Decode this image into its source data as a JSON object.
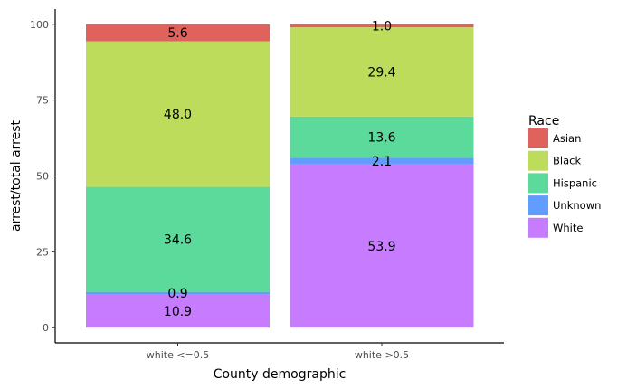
{
  "chart_data": {
    "type": "bar",
    "stacked": true,
    "categories": [
      "white <=0.5",
      "white >0.5"
    ],
    "series": [
      {
        "name": "White",
        "color": "#C77CFF",
        "values": [
          10.9,
          53.9
        ],
        "labels": [
          "10.9",
          "53.9"
        ]
      },
      {
        "name": "Unknown",
        "color": "#619CFF",
        "values": [
          0.9,
          2.1
        ],
        "labels": [
          "0.9",
          "2.1"
        ]
      },
      {
        "name": "Hispanic",
        "color": "#5CDA9B",
        "values": [
          34.6,
          13.6
        ],
        "labels": [
          "34.6",
          "13.6"
        ]
      },
      {
        "name": "Black",
        "color": "#BEDC5B",
        "values": [
          48.0,
          29.4
        ],
        "labels": [
          "48.0",
          "29.4"
        ]
      },
      {
        "name": "Asian",
        "color": "#E0625C",
        "values": [
          5.6,
          1.0
        ],
        "labels": [
          "5.6",
          "1.0"
        ]
      }
    ],
    "xlabel": "County demographic",
    "ylabel": "arrest/total arrest",
    "ylim": [
      -5,
      105
    ],
    "yticks": [
      0,
      25,
      50,
      75,
      100
    ],
    "grid": false,
    "legend": {
      "title": "Race",
      "placement": "right",
      "entries": [
        "Asian",
        "Black",
        "Hispanic",
        "Unknown",
        "White"
      ]
    }
  }
}
